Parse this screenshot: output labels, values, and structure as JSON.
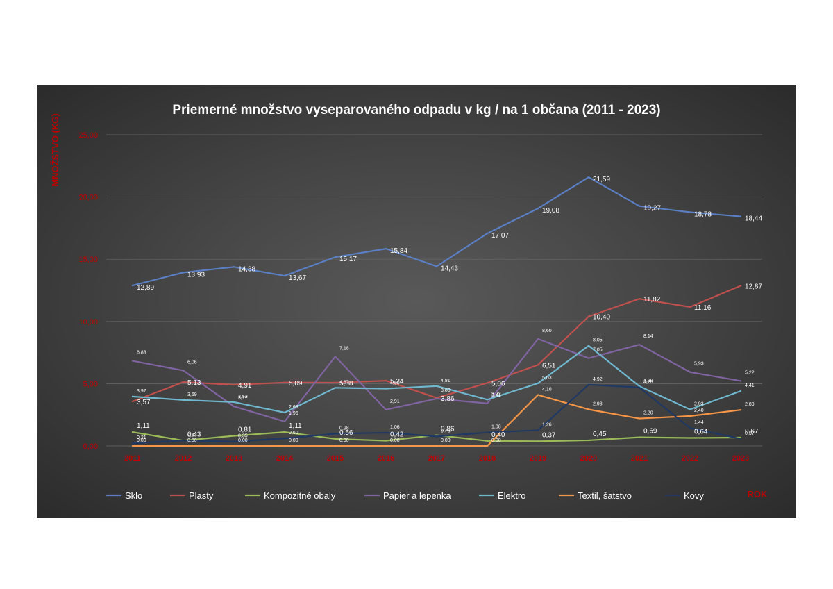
{
  "chart_data": {
    "type": "line",
    "title": "Priemerné množstvo vyseparovaného odpadu v kg / na 1 občana (2011 - 2023)",
    "ylabel": "MNOŽSTVO (KG)",
    "xlabel": "ROK",
    "ylim": [
      0,
      25
    ],
    "yticks": [
      "0,00",
      "5,00",
      "10,00",
      "15,00",
      "20,00",
      "25,00"
    ],
    "grid": true,
    "legend_position": "bottom",
    "categories": [
      "2011",
      "2012",
      "2013",
      "2014",
      "2015",
      "2016",
      "2017",
      "2018",
      "2019",
      "2020",
      "2021",
      "2022",
      "2023"
    ],
    "series": [
      {
        "name": "Sklo",
        "color": "#5b7fc4",
        "values": [
          12.89,
          13.93,
          14.38,
          13.67,
          15.17,
          15.84,
          14.43,
          17.07,
          19.08,
          21.59,
          19.27,
          18.78,
          18.44
        ],
        "labels": [
          "12,89",
          "13,93",
          "14,38",
          "13,67",
          "15,17",
          "15,84",
          "14,43",
          "17,07",
          "19,08",
          "21,59",
          "19,27",
          "18,78",
          "18,44"
        ]
      },
      {
        "name": "Plasty",
        "color": "#c0504d",
        "values": [
          3.57,
          5.13,
          4.91,
          5.09,
          5.08,
          5.24,
          3.86,
          5.06,
          6.51,
          10.4,
          11.82,
          11.16,
          12.87
        ],
        "labels": [
          "3,57",
          "5,13",
          "4,91",
          "5,09",
          "5,08",
          "5,24",
          "3,86",
          "5,06",
          "6,51",
          "10,40",
          "11,82",
          "11,16",
          "12,87"
        ]
      },
      {
        "name": "Kompozitné obaly",
        "color": "#9bbb59",
        "values": [
          1.11,
          0.43,
          0.81,
          1.11,
          0.56,
          0.42,
          0.86,
          0.4,
          0.37,
          0.45,
          0.69,
          0.64,
          0.67
        ],
        "labels": [
          "1,11",
          "0,43",
          "0,81",
          "1,11",
          "0,56",
          "0,42",
          "0,86",
          "0,40",
          "0,37",
          "0,45",
          "0,69",
          "0,64",
          "0,67"
        ]
      },
      {
        "name": "Papier a lepenka",
        "color": "#8064a2",
        "values": [
          6.83,
          6.06,
          3.17,
          1.96,
          7.18,
          2.91,
          3.8,
          3.41,
          8.6,
          7.05,
          8.14,
          5.93,
          5.22
        ],
        "labels": [
          "6,83",
          "6,06",
          "3,17",
          "1,96",
          "7,18",
          "2,91",
          "3,80",
          "3,41",
          "8,60",
          "7,05",
          "8,14",
          "5,93",
          "5,22"
        ]
      },
      {
        "name": "Elektro",
        "color": "#6fb8cf",
        "values": [
          3.97,
          3.69,
          3.52,
          2.68,
          4.67,
          4.6,
          4.81,
          3.72,
          5.03,
          8.05,
          4.8,
          2.93,
          4.41
        ],
        "labels": [
          "3,97",
          "3,69",
          "3,52",
          "2,68",
          "4,67",
          "4,60",
          "4,81",
          "3,72",
          "5,03",
          "8,05",
          "4,80",
          "2,93",
          "4,41"
        ]
      },
      {
        "name": "Textil, šatstvo",
        "color": "#f79646",
        "values": [
          0.0,
          0.0,
          0.0,
          0.0,
          0.0,
          0.0,
          0.0,
          0.0,
          4.1,
          2.93,
          2.2,
          2.4,
          2.89
        ],
        "labels": [
          "0,00",
          "0,00",
          "0,00",
          "0,00",
          "0,00",
          "0,00",
          "0,00",
          "0,00",
          "4,10",
          "2,93",
          "2,20",
          "2,40",
          "2,89"
        ]
      },
      {
        "name": "Kovy",
        "color": "#1f3864",
        "values": [
          0.21,
          0.43,
          0.35,
          0.6,
          0.98,
          1.06,
          0.76,
          1.08,
          1.26,
          4.92,
          4.7,
          1.44,
          0.57
        ],
        "labels": [
          "0,21",
          "0,43",
          "0,35",
          "0,60",
          "0,98",
          "1,06",
          "0,76",
          "1,08",
          "1,26",
          "4,92",
          "4,70",
          "1,44",
          "0,57"
        ]
      }
    ]
  }
}
